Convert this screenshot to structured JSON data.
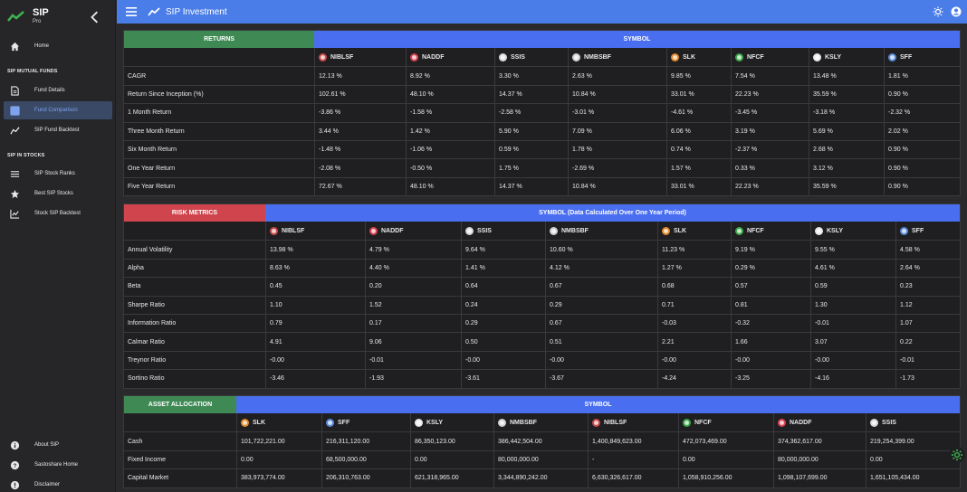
{
  "app": {
    "title": "SIP",
    "subtitle": "Pro",
    "header_title": "SIP Investment"
  },
  "sidebar": {
    "home": "Home",
    "section_mutual": "SIP MUTUAL FUNDS",
    "fund_details": "Fund Details",
    "fund_comparison": "Fund Comparison",
    "fund_backtest": "SIP Fund Backtest",
    "section_stocks": "SIP IN STOCKS",
    "stock_ranks": "SIP Stock Ranks",
    "best_stocks": "Best SIP Stocks",
    "stock_backtest": "Stock SIP Backtest",
    "about": "About SIP",
    "sastoshare": "Sastoshare Home",
    "disclaimer": "Disclaimer"
  },
  "colors": {
    "accent": "#4a7de8",
    "returns": "#3f8a54",
    "risk": "#d0454d",
    "asset": "#3f8a54",
    "band": "#4a6ef0"
  },
  "returns": {
    "label": "RETURNS",
    "symbol_label": "SYMBOL",
    "symbols": [
      {
        "name": "NIBLSF",
        "color": "#c84a4a"
      },
      {
        "name": "NADDF",
        "color": "#d84050"
      },
      {
        "name": "SSIS",
        "color": "#d8d8d8"
      },
      {
        "name": "NMBSBF",
        "color": "#d0d0d0"
      },
      {
        "name": "SLK",
        "color": "#e08a2a"
      },
      {
        "name": "NFCF",
        "color": "#3aa84a"
      },
      {
        "name": "KSLY",
        "color": "#e8e8e8"
      },
      {
        "name": "SFF",
        "color": "#5a8ad8"
      }
    ],
    "rows": [
      {
        "label": "CAGR",
        "values": [
          "12.13 %",
          "8.92 %",
          "3.30 %",
          "2.63 %",
          "9.85 %",
          "7.54 %",
          "13.48 %",
          "1.81 %"
        ]
      },
      {
        "label": "Return Since Inception (%)",
        "values": [
          "102.61 %",
          "48.10 %",
          "14.37 %",
          "10.84 %",
          "33.01 %",
          "22.23 %",
          "35.59 %",
          "0.90 %"
        ]
      },
      {
        "label": "1 Month Return",
        "values": [
          "-3.86 %",
          "-1.58 %",
          "-2.58 %",
          "-3.01 %",
          "-4.61 %",
          "-3.45 %",
          "-3.18 %",
          "-2.32 %"
        ]
      },
      {
        "label": "Three Month Return",
        "values": [
          "3.44 %",
          "1.42 %",
          "5.90 %",
          "7.09 %",
          "6.06 %",
          "3.19 %",
          "5.69 %",
          "2.02 %"
        ]
      },
      {
        "label": "Six Month Return",
        "values": [
          "-1.48 %",
          "-1.06 %",
          "0.59 %",
          "1.78 %",
          "0.74 %",
          "-2.37 %",
          "2.68 %",
          "0.90 %"
        ]
      },
      {
        "label": "One Year Return",
        "values": [
          "-2.08 %",
          "-0.50 %",
          "1.75 %",
          "-2.69 %",
          "1.57 %",
          "0.33 %",
          "3.12 %",
          "0.90 %"
        ]
      },
      {
        "label": "Five Year Return",
        "values": [
          "72.67 %",
          "48.10 %",
          "14.37 %",
          "10.84 %",
          "33.01 %",
          "22.23 %",
          "35.59 %",
          "0.90 %"
        ]
      }
    ]
  },
  "risk": {
    "label": "RISK METRICS",
    "symbol_label": "SYMBOL (Data Calculated Over One Year Period)",
    "symbols": [
      {
        "name": "NIBLSF",
        "color": "#c84a4a"
      },
      {
        "name": "NADDF",
        "color": "#d84050"
      },
      {
        "name": "SSIS",
        "color": "#d8d8d8"
      },
      {
        "name": "NMBSBF",
        "color": "#d0d0d0"
      },
      {
        "name": "SLK",
        "color": "#e08a2a"
      },
      {
        "name": "NFCF",
        "color": "#3aa84a"
      },
      {
        "name": "KSLY",
        "color": "#e8e8e8"
      },
      {
        "name": "SFF",
        "color": "#5a8ad8"
      }
    ],
    "rows": [
      {
        "label": "Annual Volatility",
        "values": [
          "13.98 %",
          "4.79 %",
          "9.64 %",
          "10.60 %",
          "11.23 %",
          "9.19 %",
          "9.55 %",
          "4.58 %"
        ]
      },
      {
        "label": "Alpha",
        "values": [
          "8.63 %",
          "4.40 %",
          "1.41 %",
          "4.12 %",
          "1.27 %",
          "0.29 %",
          "4.61 %",
          "2.64 %"
        ]
      },
      {
        "label": "Beta",
        "values": [
          "0.45",
          "0.20",
          "0.64",
          "0.67",
          "0.68",
          "0.57",
          "0.59",
          "0.23"
        ]
      },
      {
        "label": "Sharpe Ratio",
        "values": [
          "1.10",
          "1.52",
          "0.24",
          "0.29",
          "0.71",
          "0.81",
          "1.30",
          "1.12"
        ]
      },
      {
        "label": "Information Ratio",
        "values": [
          "0.79",
          "0.17",
          "0.29",
          "0.67",
          "-0.03",
          "-0.32",
          "-0.01",
          "1.07"
        ]
      },
      {
        "label": "Calmar Ratio",
        "values": [
          "4.91",
          "9.06",
          "0.50",
          "0.51",
          "2.21",
          "1.66",
          "3.07",
          "0.22"
        ]
      },
      {
        "label": "Treynor Ratio",
        "values": [
          "-0.00",
          "-0.01",
          "-0.00",
          "-0.00",
          "-0.00",
          "-0.00",
          "-0.00",
          "-0.01"
        ]
      },
      {
        "label": "Sortino Ratio",
        "values": [
          "-3.46",
          "-1.93",
          "-3.61",
          "-3.67",
          "-4.24",
          "-3.25",
          "-4.16",
          "-1.73"
        ]
      }
    ]
  },
  "asset": {
    "label": "ASSET ALLOCATION",
    "symbol_label": "SYMBOL",
    "symbols": [
      {
        "name": "SLK",
        "color": "#e08a2a"
      },
      {
        "name": "SFF",
        "color": "#5a8ad8"
      },
      {
        "name": "KSLY",
        "color": "#e8e8e8"
      },
      {
        "name": "NMBSBF",
        "color": "#d0d0d0"
      },
      {
        "name": "NIBLSF",
        "color": "#c84a4a"
      },
      {
        "name": "NFCF",
        "color": "#3aa84a"
      },
      {
        "name": "NADDF",
        "color": "#d84050"
      },
      {
        "name": "SSIS",
        "color": "#d8d8d8"
      }
    ],
    "rows": [
      {
        "label": "Cash",
        "values": [
          "101,722,221.00",
          "216,311,120.00",
          "86,350,123.00",
          "386,442,504.00",
          "1,400,849,623.00",
          "472,073,469.00",
          "374,362,617.00",
          "219,254,399.00"
        ]
      },
      {
        "label": "Fixed Income",
        "values": [
          "0.00",
          "68,500,000.00",
          "0.00",
          "80,000,000.00",
          "-",
          "0.00",
          "80,000,000.00",
          "0.00"
        ]
      },
      {
        "label": "Capital Market",
        "values": [
          "383,973,774.00",
          "206,310,763.00",
          "621,318,965.00",
          "3,344,890,242.00",
          "6,630,326,617.00",
          "1,058,910,256.00",
          "1,098,107,699.00",
          "1,651,105,434.00"
        ]
      }
    ]
  }
}
